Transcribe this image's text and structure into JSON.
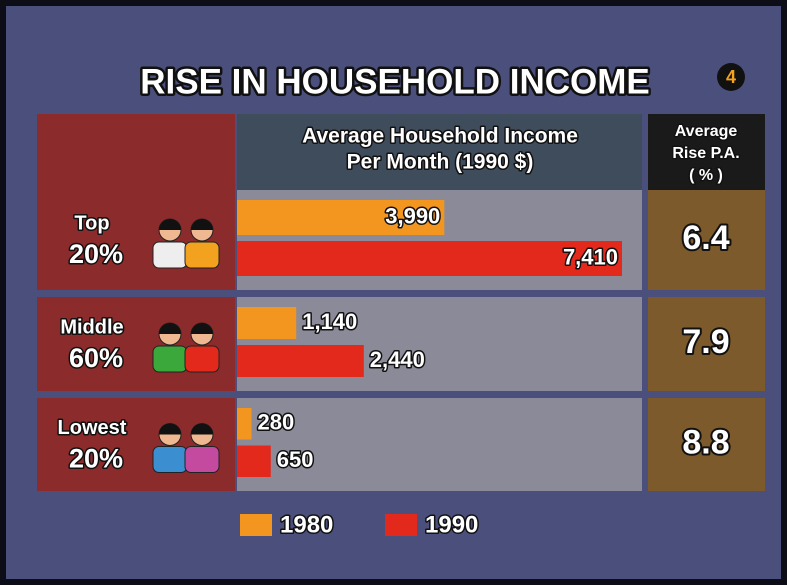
{
  "chart_data": {
    "type": "bar",
    "orientation": "horizontal",
    "title": "RISE IN HOUSEHOLD INCOME",
    "badge": "4",
    "value_header": [
      "Average Household Income",
      "Per Month  (1990 $)"
    ],
    "categories": [
      "Top",
      "Middle",
      "Lowest"
    ],
    "category_shares": [
      "20%",
      "60%",
      "20%"
    ],
    "series": [
      {
        "name": "1980",
        "color": "#f3961f",
        "values": [
          3990,
          1140,
          280
        ],
        "value_labels": [
          "3,990",
          "1,140",
          "280"
        ]
      },
      {
        "name": "1990",
        "color": "#e3291b",
        "values": [
          7410,
          2440,
          650
        ],
        "value_labels": [
          "7,410",
          "2,440",
          "650"
        ]
      }
    ],
    "rise": {
      "header": [
        "Average",
        "Rise P.A.",
        "( % )"
      ],
      "values": [
        6.4,
        7.9,
        8.8
      ]
    }
  }
}
